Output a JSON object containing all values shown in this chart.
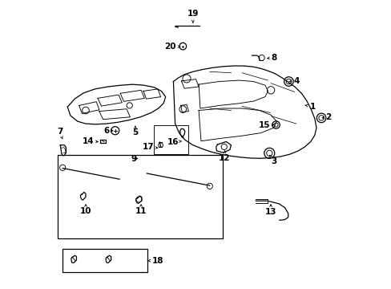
{
  "bg": "#ffffff",
  "lc": "#000000",
  "fw": 4.89,
  "fh": 3.6,
  "dpi": 100,
  "label_fs": 7.5,
  "labels": {
    "1": [
      0.895,
      0.63,
      0.87,
      0.638,
      "left",
      "center"
    ],
    "2": [
      0.95,
      0.595,
      0.935,
      0.592,
      "left",
      "center"
    ],
    "3": [
      0.77,
      0.455,
      0.755,
      0.465,
      "center",
      "top"
    ],
    "4": [
      0.84,
      0.72,
      0.822,
      0.718,
      "left",
      "center"
    ],
    "5": [
      0.29,
      0.555,
      0.29,
      0.565,
      "center",
      "top"
    ],
    "6": [
      0.2,
      0.548,
      0.215,
      0.548,
      "right",
      "center"
    ],
    "7": [
      0.028,
      0.53,
      0.038,
      0.518,
      "center",
      "bottom"
    ],
    "8": [
      0.76,
      0.8,
      0.745,
      0.798,
      "left",
      "center"
    ],
    "9": [
      0.295,
      0.45,
      0.3,
      0.452,
      "right",
      "center"
    ],
    "10": [
      0.118,
      0.282,
      0.118,
      0.295,
      "center",
      "top"
    ],
    "11": [
      0.31,
      0.282,
      0.31,
      0.295,
      "center",
      "top"
    ],
    "12": [
      0.6,
      0.468,
      0.6,
      0.48,
      "center",
      "top"
    ],
    "13": [
      0.76,
      0.28,
      0.76,
      0.295,
      "center",
      "top"
    ],
    "14": [
      0.148,
      0.51,
      0.163,
      0.51,
      "right",
      "center"
    ],
    "15": [
      0.758,
      0.568,
      0.773,
      0.568,
      "right",
      "center"
    ],
    "16": [
      0.44,
      0.508,
      0.452,
      0.512,
      "right",
      "center"
    ],
    "17": [
      0.355,
      0.492,
      0.37,
      0.488,
      "right",
      "center"
    ],
    "18": [
      0.348,
      0.098,
      0.332,
      0.098,
      "left",
      "center"
    ],
    "19": [
      0.49,
      0.938,
      0.49,
      0.92,
      "center",
      "bottom"
    ],
    "20": [
      0.43,
      0.84,
      0.448,
      0.838,
      "right",
      "center"
    ]
  }
}
